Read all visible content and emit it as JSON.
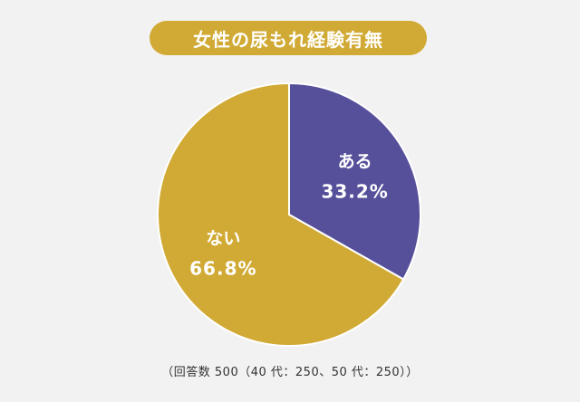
{
  "title": "女性の尿もれ経験有無",
  "footnote": "（回答数 500（40 代：250、50 代：250））",
  "colors": {
    "background": "#f2f2f2",
    "title_bg": "#d1aa35",
    "label_text": "#ffffff"
  },
  "chart_data": {
    "type": "pie",
    "title": "女性の尿もれ経験有無",
    "slices": [
      {
        "label": "ある",
        "value": 33.2,
        "display": "33.2%",
        "color": "#56509b"
      },
      {
        "label": "ない",
        "value": 66.8,
        "display": "66.8%",
        "color": "#d1aa35"
      }
    ],
    "start_angle_deg": 0,
    "direction": "clockwise"
  }
}
